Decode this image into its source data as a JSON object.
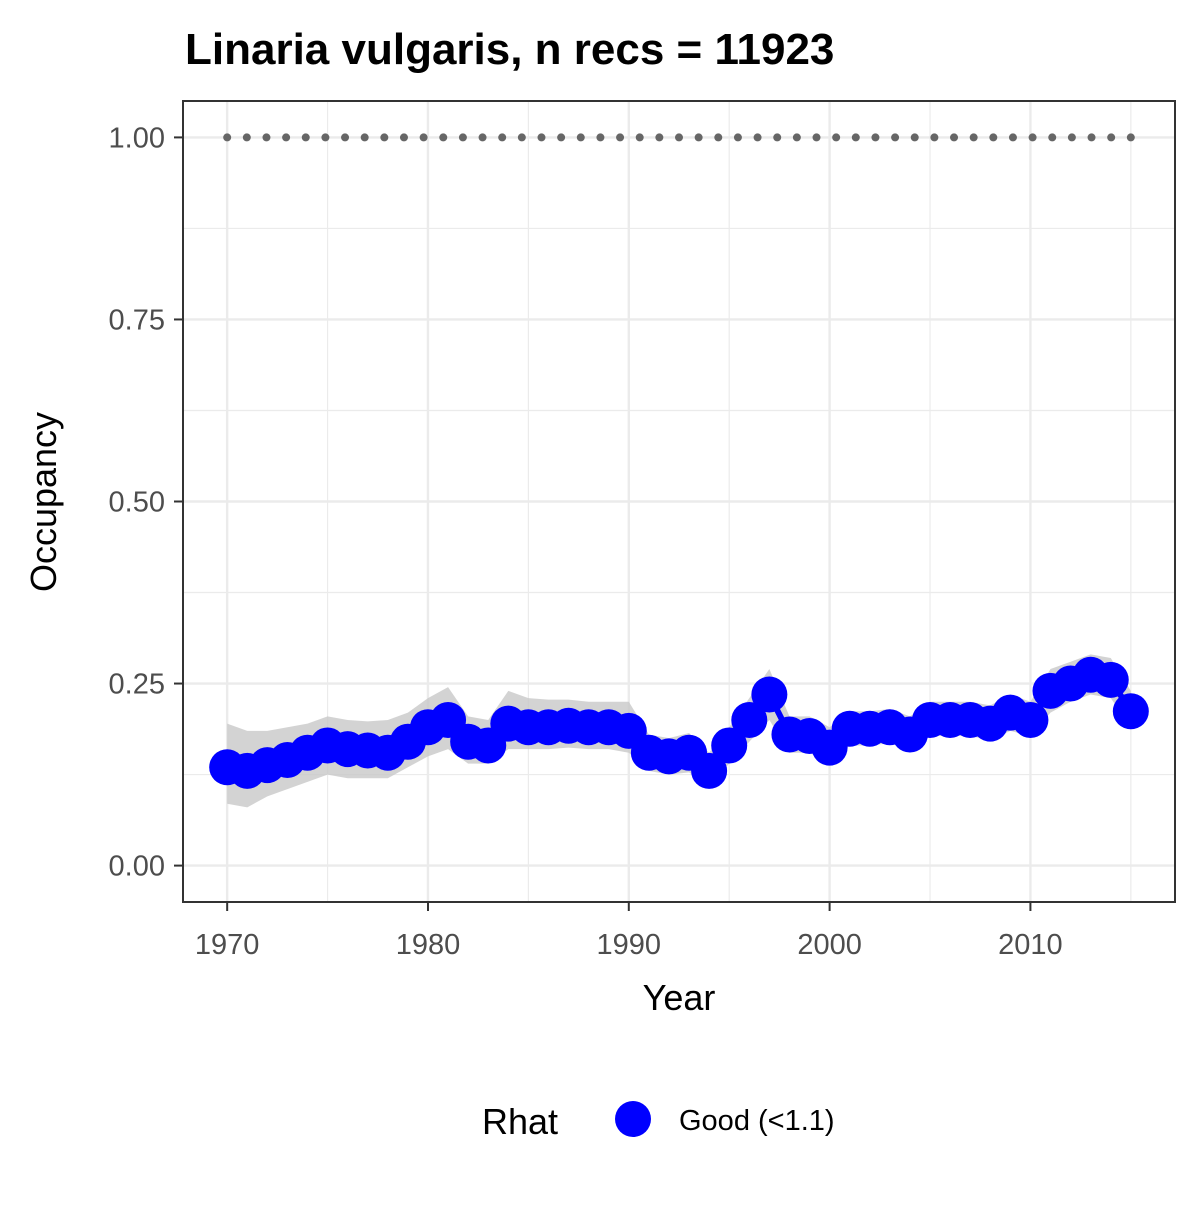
{
  "chart_data": {
    "type": "line",
    "title": "Linaria vulgaris, n recs = 11923",
    "xlabel": "Year",
    "ylabel": "Occupancy",
    "xlim": [
      1967.8,
      2017.2
    ],
    "ylim": [
      -0.05,
      1.05
    ],
    "x_ticks": [
      1970,
      1980,
      1990,
      2000,
      2010
    ],
    "x_tick_labels": [
      "1970",
      "1980",
      "1990",
      "2000",
      "2010"
    ],
    "y_ticks": [
      0,
      0.25,
      0.5,
      0.75,
      1.0
    ],
    "y_tick_labels": [
      "0.00",
      "0.25",
      "0.50",
      "0.75",
      "1.00"
    ],
    "grid": true,
    "legend_position": "bottom",
    "legend": {
      "title": "Rhat",
      "items": [
        {
          "label": "Good (<1.1)",
          "color": "#0000ff"
        }
      ]
    },
    "x": [
      1970,
      1971,
      1972,
      1973,
      1974,
      1975,
      1976,
      1977,
      1978,
      1979,
      1980,
      1981,
      1982,
      1983,
      1984,
      1985,
      1986,
      1987,
      1988,
      1989,
      1990,
      1991,
      1992,
      1993,
      1994,
      1995,
      1996,
      1997,
      1998,
      1999,
      2000,
      2001,
      2002,
      2003,
      2004,
      2005,
      2006,
      2007,
      2008,
      2009,
      2010,
      2011,
      2012,
      2013,
      2014,
      2015
    ],
    "series": [
      {
        "name": "Good (<1.1)",
        "color": "#0000ff",
        "values": [
          0.135,
          0.13,
          0.138,
          0.145,
          0.155,
          0.165,
          0.16,
          0.158,
          0.155,
          0.17,
          0.19,
          0.2,
          0.17,
          0.165,
          0.195,
          0.19,
          0.19,
          0.192,
          0.19,
          0.19,
          0.185,
          0.155,
          0.15,
          0.155,
          0.13,
          0.165,
          0.2,
          0.235,
          0.18,
          0.178,
          0.162,
          0.188,
          0.188,
          0.19,
          0.18,
          0.2,
          0.2,
          0.2,
          0.195,
          0.21,
          0.2,
          0.24,
          0.25,
          0.262,
          0.255,
          0.212
        ],
        "lower": [
          0.085,
          0.08,
          0.095,
          0.105,
          0.115,
          0.125,
          0.12,
          0.12,
          0.12,
          0.135,
          0.15,
          0.16,
          0.14,
          0.14,
          0.16,
          0.16,
          0.16,
          0.162,
          0.16,
          0.16,
          0.155,
          0.13,
          0.125,
          0.128,
          0.11,
          0.14,
          0.17,
          0.2,
          0.155,
          0.155,
          0.14,
          0.165,
          0.165,
          0.168,
          0.158,
          0.178,
          0.178,
          0.178,
          0.172,
          0.185,
          0.178,
          0.21,
          0.225,
          0.235,
          0.23,
          0.19
        ],
        "upper": [
          0.195,
          0.185,
          0.185,
          0.19,
          0.195,
          0.205,
          0.2,
          0.198,
          0.2,
          0.21,
          0.23,
          0.245,
          0.205,
          0.2,
          0.24,
          0.23,
          0.228,
          0.228,
          0.225,
          0.225,
          0.225,
          0.18,
          0.175,
          0.182,
          0.155,
          0.19,
          0.23,
          0.27,
          0.205,
          0.205,
          0.19,
          0.212,
          0.212,
          0.215,
          0.205,
          0.225,
          0.225,
          0.225,
          0.22,
          0.235,
          0.225,
          0.27,
          0.28,
          0.29,
          0.285,
          0.24
        ]
      },
      {
        "name": "",
        "color": "#666666",
        "style": "dotted",
        "values": [
          1,
          1,
          1,
          1,
          1,
          1,
          1,
          1,
          1,
          1,
          1,
          1,
          1,
          1,
          1,
          1,
          1,
          1,
          1,
          1,
          1,
          1,
          1,
          1,
          1,
          1,
          1,
          1,
          1,
          1,
          1,
          1,
          1,
          1,
          1,
          1,
          1,
          1,
          1,
          1,
          1,
          1,
          1,
          1,
          1,
          1
        ]
      }
    ]
  }
}
